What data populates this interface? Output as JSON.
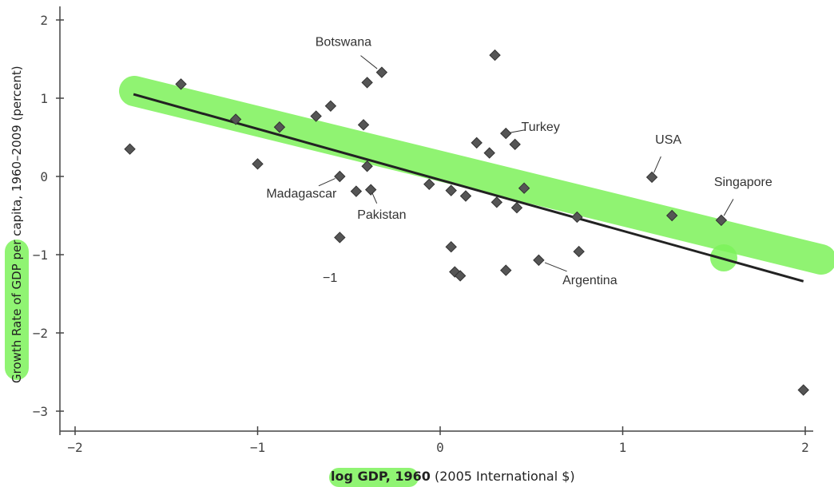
{
  "chart_data": {
    "type": "scatter",
    "xlabel_bold": "log GDP, 1960",
    "xlabel_rest": " (2005 International $)",
    "ylabel": "Growth Rate of GDP per capita, 1960–2009 (percent)",
    "xlim": [
      -2.1,
      2.1
    ],
    "ylim": [
      -3.1,
      2.1
    ],
    "x_ticks": [
      -2,
      -1,
      0,
      1,
      2
    ],
    "x_tick_labels": [
      "−2",
      "−1",
      "0",
      "1",
      "2"
    ],
    "y_ticks": [
      2,
      1,
      0,
      -1,
      -2,
      -3
    ],
    "y_tick_labels": [
      "2",
      "1",
      "0",
      "−1",
      "−2",
      "−3"
    ],
    "stray_label": "−1",
    "points": [
      {
        "x": -1.7,
        "y": 0.35
      },
      {
        "x": -1.42,
        "y": 1.18
      },
      {
        "x": -1.12,
        "y": 0.73
      },
      {
        "x": -1.0,
        "y": 0.16
      },
      {
        "x": -0.88,
        "y": 0.63
      },
      {
        "x": -0.68,
        "y": 0.77
      },
      {
        "x": -0.6,
        "y": 0.9
      },
      {
        "x": -0.55,
        "y": 0.0
      },
      {
        "x": -0.55,
        "y": -0.78
      },
      {
        "x": -0.46,
        "y": -0.19
      },
      {
        "x": -0.42,
        "y": 0.66
      },
      {
        "x": -0.4,
        "y": 0.13
      },
      {
        "x": -0.4,
        "y": 1.2
      },
      {
        "x": -0.38,
        "y": -0.17
      },
      {
        "x": -0.32,
        "y": 1.33
      },
      {
        "x": -0.06,
        "y": -0.1
      },
      {
        "x": 0.06,
        "y": -0.18
      },
      {
        "x": 0.06,
        "y": -0.9
      },
      {
        "x": 0.08,
        "y": -1.22
      },
      {
        "x": 0.11,
        "y": -1.27
      },
      {
        "x": 0.14,
        "y": -0.25
      },
      {
        "x": 0.2,
        "y": 0.43
      },
      {
        "x": 0.27,
        "y": 0.3
      },
      {
        "x": 0.3,
        "y": 1.55
      },
      {
        "x": 0.31,
        "y": -0.33
      },
      {
        "x": 0.36,
        "y": 0.55
      },
      {
        "x": 0.36,
        "y": -1.2
      },
      {
        "x": 0.41,
        "y": 0.41
      },
      {
        "x": 0.42,
        "y": -0.4
      },
      {
        "x": 0.46,
        "y": -0.15
      },
      {
        "x": 0.54,
        "y": -1.07
      },
      {
        "x": 0.75,
        "y": -0.52
      },
      {
        "x": 0.76,
        "y": -0.96
      },
      {
        "x": 1.16,
        "y": -0.01
      },
      {
        "x": 1.27,
        "y": -0.5
      },
      {
        "x": 1.54,
        "y": -0.56
      },
      {
        "x": 1.99,
        "y": -2.73
      }
    ],
    "fit_line": {
      "x": [
        -1.68,
        1.99
      ],
      "y": [
        1.05,
        -1.34
      ]
    },
    "annotations": [
      {
        "text": "Botswana",
        "tx": -0.53,
        "ty": 1.67,
        "px": -0.32,
        "py": 1.33
      },
      {
        "text": "Turkey",
        "tx": 0.55,
        "ty": 0.58,
        "px": 0.36,
        "py": 0.55
      },
      {
        "text": "USA",
        "tx": 1.25,
        "ty": 0.42,
        "px": 1.16,
        "py": -0.01
      },
      {
        "text": "Singapore",
        "tx": 1.66,
        "ty": -0.12,
        "px": 1.54,
        "py": -0.56
      },
      {
        "text": "Madagascar",
        "tx": -0.76,
        "ty": -0.27,
        "px": -0.55,
        "py": 0.0
      },
      {
        "text": "Pakistan",
        "tx": -0.32,
        "ty": -0.54,
        "px": -0.38,
        "py": -0.17
      },
      {
        "text": "Argentina",
        "tx": 0.82,
        "ty": -1.38,
        "px": 0.54,
        "py": -1.07
      }
    ]
  },
  "highlight_color": "#7df25a"
}
